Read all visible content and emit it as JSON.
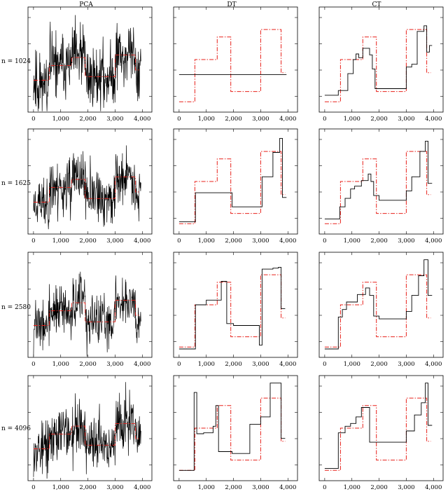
{
  "columns": [
    "PCA",
    "DT",
    "CT"
  ],
  "rows": [
    "n = 1024",
    "n = 1625",
    "n = 2580",
    "n = 4096"
  ],
  "chart_data": {
    "type": "line",
    "grid": false,
    "xlim": [
      -100,
      4250
    ],
    "xticks": [
      0,
      1000,
      2000,
      3000,
      4000
    ],
    "xtick_labels": [
      "0",
      "1,000",
      "2,000",
      "3,000",
      "4,000"
    ],
    "reference_series": {
      "color": "#e8201a",
      "style": "dash-dot",
      "x": [
        0,
        580,
        580,
        1400,
        1400,
        1900,
        1900,
        3000,
        3000,
        3750,
        3750,
        3900
      ],
      "y": [
        0.05,
        0.05,
        0.5,
        0.5,
        0.74,
        0.74,
        0.16,
        0.16,
        0.82,
        0.82,
        0.36,
        0.36
      ]
    },
    "estimate_color": "#000000",
    "panels": [
      {
        "row": 0,
        "col": 0,
        "kind": "noisy",
        "noise": 0.26,
        "seed": 11
      },
      {
        "row": 0,
        "col": 1,
        "kind": "step",
        "x": [
          0,
          3950
        ],
        "y": [
          0.34,
          0.34
        ]
      },
      {
        "row": 0,
        "col": 2,
        "kind": "step",
        "x": [
          0,
          500,
          500,
          850,
          850,
          1050,
          1050,
          1150,
          1150,
          1250,
          1250,
          1400,
          1400,
          1650,
          1650,
          1750,
          1750,
          1850,
          1850,
          3000,
          3000,
          3200,
          3200,
          3400,
          3400,
          3650,
          3650,
          3750,
          3750,
          3850,
          3850,
          3950
        ],
        "y": [
          0.12,
          0.12,
          0.17,
          0.17,
          0.35,
          0.35,
          0.5,
          0.5,
          0.56,
          0.56,
          0.52,
          0.52,
          0.62,
          0.62,
          0.55,
          0.55,
          0.4,
          0.4,
          0.19,
          0.19,
          0.42,
          0.42,
          0.45,
          0.45,
          0.8,
          0.8,
          0.86,
          0.86,
          0.58,
          0.58,
          0.65,
          0.65
        ]
      },
      {
        "row": 1,
        "col": 0,
        "kind": "noisy",
        "noise": 0.22,
        "seed": 23
      },
      {
        "row": 1,
        "col": 1,
        "kind": "step",
        "x": [
          0,
          600,
          600,
          1950,
          1950,
          3050,
          3050,
          3450,
          3450,
          3700,
          3700,
          3800,
          3800,
          3950
        ],
        "y": [
          0.07,
          0.07,
          0.38,
          0.38,
          0.23,
          0.23,
          0.55,
          0.55,
          0.81,
          0.81,
          0.96,
          0.96,
          0.33,
          0.33
        ]
      },
      {
        "row": 1,
        "col": 2,
        "kind": "step",
        "x": [
          0,
          550,
          550,
          750,
          750,
          950,
          950,
          1100,
          1100,
          1350,
          1350,
          1600,
          1600,
          1700,
          1700,
          1800,
          1800,
          2000,
          2000,
          3000,
          3000,
          3200,
          3200,
          3500,
          3500,
          3700,
          3700,
          3800,
          3800,
          3950
        ],
        "y": [
          0.1,
          0.1,
          0.23,
          0.23,
          0.32,
          0.32,
          0.42,
          0.42,
          0.45,
          0.45,
          0.51,
          0.51,
          0.58,
          0.58,
          0.5,
          0.5,
          0.35,
          0.35,
          0.3,
          0.3,
          0.4,
          0.4,
          0.55,
          0.55,
          0.82,
          0.82,
          0.93,
          0.93,
          0.48,
          0.48
        ]
      },
      {
        "row": 2,
        "col": 0,
        "kind": "noisy",
        "noise": 0.2,
        "seed": 37
      },
      {
        "row": 2,
        "col": 1,
        "kind": "step",
        "x": [
          0,
          600,
          600,
          1000,
          1000,
          1550,
          1550,
          1750,
          1750,
          2000,
          2000,
          2950,
          2950,
          3050,
          3050,
          3450,
          3450,
          3650,
          3650,
          3750,
          3750,
          3900
        ],
        "y": [
          0.03,
          0.03,
          0.5,
          0.5,
          0.55,
          0.55,
          0.75,
          0.75,
          0.3,
          0.3,
          0.28,
          0.28,
          0.07,
          0.07,
          0.88,
          0.88,
          0.89,
          0.89,
          0.9,
          0.9,
          0.46,
          0.46
        ]
      },
      {
        "row": 2,
        "col": 2,
        "kind": "step",
        "x": [
          0,
          500,
          500,
          650,
          650,
          800,
          800,
          1200,
          1200,
          1500,
          1500,
          1650,
          1650,
          1800,
          1800,
          2000,
          2000,
          3000,
          3000,
          3200,
          3200,
          3450,
          3450,
          3650,
          3650,
          3800,
          3800,
          3950
        ],
        "y": [
          0.03,
          0.03,
          0.37,
          0.37,
          0.45,
          0.45,
          0.53,
          0.53,
          0.61,
          0.61,
          0.68,
          0.68,
          0.6,
          0.6,
          0.38,
          0.38,
          0.35,
          0.35,
          0.43,
          0.43,
          0.6,
          0.6,
          0.81,
          0.81,
          0.98,
          0.98,
          0.6,
          0.6
        ]
      },
      {
        "row": 3,
        "col": 0,
        "kind": "noisy",
        "noise": 0.22,
        "seed": 53
      },
      {
        "row": 3,
        "col": 1,
        "kind": "step",
        "x": [
          0,
          550,
          550,
          650,
          650,
          900,
          900,
          1250,
          1250,
          1350,
          1350,
          1450,
          1450,
          1950,
          1950,
          2600,
          2600,
          3000,
          3000,
          3350,
          3350,
          3750,
          3750,
          3900
        ],
        "y": [
          0.05,
          0.05,
          0.88,
          0.88,
          0.44,
          0.44,
          0.45,
          0.45,
          0.52,
          0.52,
          0.74,
          0.74,
          0.25,
          0.25,
          0.23,
          0.23,
          0.54,
          0.54,
          0.62,
          0.62,
          0.98,
          0.98,
          0.39,
          0.39
        ]
      },
      {
        "row": 3,
        "col": 2,
        "kind": "step",
        "x": [
          0,
          500,
          500,
          750,
          750,
          950,
          950,
          1150,
          1150,
          1350,
          1350,
          1650,
          1650,
          1850,
          1850,
          3000,
          3000,
          3300,
          3300,
          3550,
          3550,
          3700,
          3700,
          3800,
          3800,
          3950
        ],
        "y": [
          0.07,
          0.07,
          0.45,
          0.45,
          0.52,
          0.52,
          0.55,
          0.55,
          0.62,
          0.62,
          0.72,
          0.72,
          0.35,
          0.35,
          0.35,
          0.35,
          0.47,
          0.47,
          0.64,
          0.64,
          0.77,
          0.77,
          0.98,
          0.98,
          0.53,
          0.53
        ]
      }
    ]
  }
}
